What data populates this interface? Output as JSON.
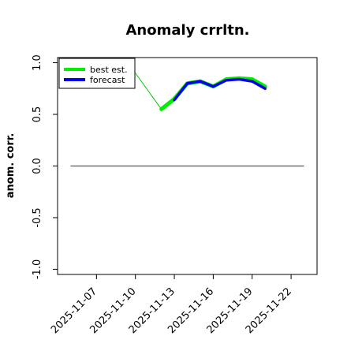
{
  "chart_data": {
    "type": "line",
    "title": "Anomaly crrltn.",
    "xlabel": "",
    "ylabel": "anom. corr.",
    "x_ticks": [
      "2025-11-07",
      "2025-11-10",
      "2025-11-13",
      "2025-11-16",
      "2025-11-19",
      "2025-11-22"
    ],
    "highlighted_tick": "2025-11-13",
    "highlight_color": "#228B22",
    "y_ticks": [
      "-1.0",
      "-0.5",
      "0.0",
      "0.5",
      "1.0"
    ],
    "ylim": [
      -1.05,
      1.05
    ],
    "xlim": [
      "2025-11-04",
      "2025-11-24"
    ],
    "reference_line": 0.0,
    "grid": false,
    "legend_position": "top-left",
    "series": [
      {
        "name": "best est.",
        "color": "#00EE00",
        "x": [
          "2025-11-12",
          "2025-11-13",
          "2025-11-14",
          "2025-11-15",
          "2025-11-16",
          "2025-11-17",
          "2025-11-18",
          "2025-11-19",
          "2025-11-20"
        ],
        "y": [
          0.55,
          0.65,
          0.8,
          0.82,
          0.77,
          0.84,
          0.85,
          0.84,
          0.77
        ]
      },
      {
        "name": "forecast",
        "color": "#0000EE",
        "x": [
          "2025-11-13",
          "2025-11-14",
          "2025-11-15",
          "2025-11-16",
          "2025-11-17",
          "2025-11-18",
          "2025-11-19",
          "2025-11-20"
        ],
        "y": [
          0.64,
          0.8,
          0.82,
          0.77,
          0.83,
          0.84,
          0.82,
          0.75
        ]
      }
    ],
    "connector": {
      "color": "#00CC00",
      "x": [
        "2025-11-10",
        "2025-11-12"
      ],
      "y": [
        0.9,
        0.55
      ]
    }
  }
}
